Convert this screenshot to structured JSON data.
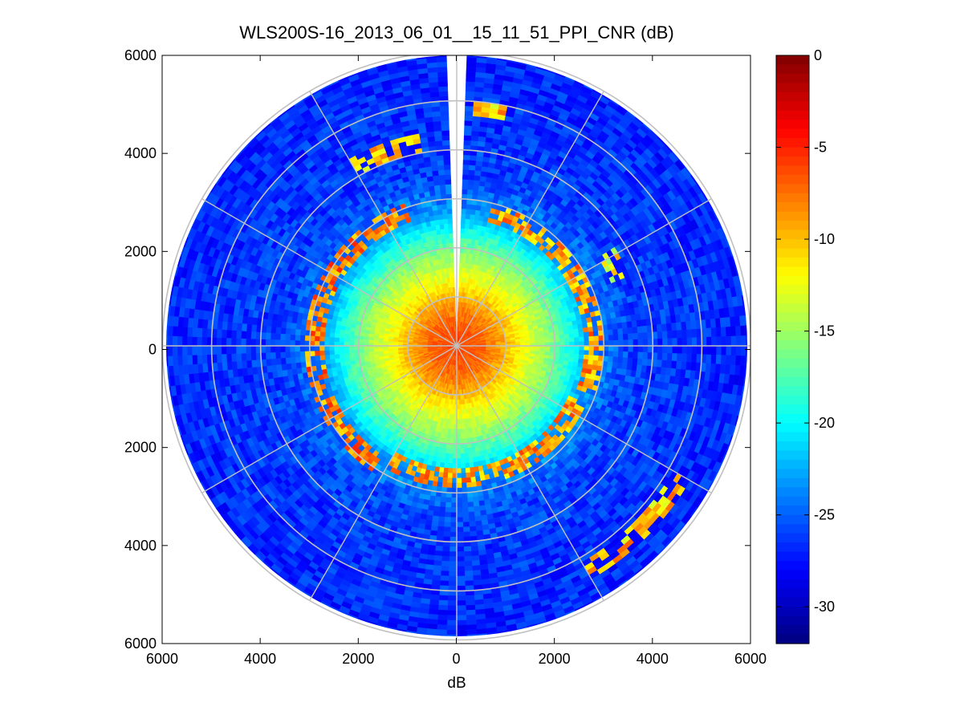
{
  "chart_data": {
    "type": "heatmap",
    "subtype": "polar-ppi-scan",
    "title": "WLS200S-16_2013_06_01__15_11_51_PPI_CNR (dB)",
    "xlabel": "dB",
    "ylabel": "",
    "xlim": [
      -6000,
      6000
    ],
    "ylim": [
      -6000,
      6000
    ],
    "x_tick_labels": [
      "6000",
      "4000",
      "2000",
      "0",
      "2000",
      "4000",
      "6000"
    ],
    "y_tick_labels": [
      "6000",
      "4000",
      "2000",
      "0",
      "2000",
      "4000",
      "6000"
    ],
    "grid": true,
    "range_rings": [
      1000,
      2000,
      3000,
      4000,
      5000,
      6000
    ],
    "radial_spokes_deg": [
      0,
      30,
      60,
      90,
      120,
      150,
      180,
      210,
      240,
      270,
      300,
      330
    ],
    "colormap": "jet",
    "colorbar": {
      "min": -32,
      "max": 0,
      "tick_values": [
        0,
        -5,
        -10,
        -15,
        -20,
        -25,
        -30
      ],
      "tick_labels": [
        "0",
        "-5",
        "-10",
        "-15",
        "-20",
        "-25",
        "-30"
      ],
      "position": "right"
    },
    "radial_profile_db": [
      {
        "range": 0,
        "cnr": -6
      },
      {
        "range": 500,
        "cnr": -7
      },
      {
        "range": 900,
        "cnr": -9
      },
      {
        "range": 1300,
        "cnr": -12
      },
      {
        "range": 1800,
        "cnr": -15
      },
      {
        "range": 2300,
        "cnr": -19
      },
      {
        "range": 2700,
        "cnr": -23
      },
      {
        "range": 3500,
        "cnr": -26
      },
      {
        "range": 6000,
        "cnr": -27
      }
    ],
    "high_return_arcs": [
      {
        "azimuth_start_deg": 215,
        "azimuth_end_deg": 340,
        "range": 2900,
        "cnr": -5
      },
      {
        "azimuth_start_deg": 15,
        "azimuth_end_deg": 110,
        "range": 2800,
        "cnr": -6
      },
      {
        "azimuth_start_deg": 115,
        "azimuth_end_deg": 210,
        "range": 2700,
        "cnr": -6
      },
      {
        "azimuth_start_deg": 120,
        "azimuth_end_deg": 150,
        "range": 5300,
        "cnr": -7
      },
      {
        "azimuth_start_deg": 330,
        "azimuth_end_deg": 350,
        "range": 4200,
        "cnr": -7
      },
      {
        "azimuth_start_deg": 4,
        "azimuth_end_deg": 12,
        "range": 4850,
        "cnr": -7
      },
      {
        "azimuth_start_deg": 58,
        "azimuth_end_deg": 68,
        "range": 3600,
        "cnr": -9
      }
    ],
    "blocked_sector_deg": [
      358,
      362
    ]
  },
  "colors": {
    "background": "#ffffff",
    "axes_frame": "#000000",
    "grid": "#c0c0c0"
  }
}
